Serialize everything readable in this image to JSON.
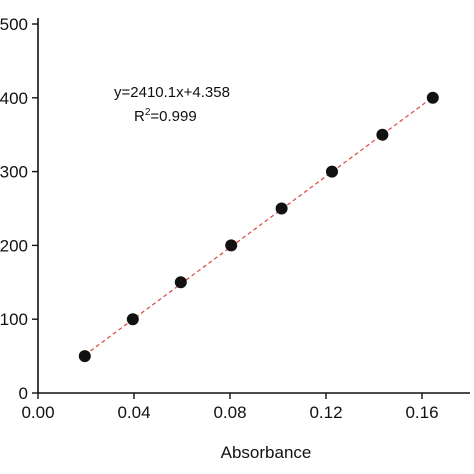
{
  "chart_data": {
    "type": "scatter",
    "xlabel": "Absorbance",
    "ylabel": "",
    "xlim": [
      0,
      0.18
    ],
    "ylim": [
      0,
      500
    ],
    "x_ticks": [
      "0.00",
      "0.04",
      "0.08",
      "0.12",
      "0.16"
    ],
    "x_tick_values": [
      0,
      0.04,
      0.08,
      0.12,
      0.16
    ],
    "y_ticks": [
      "0",
      "100",
      "200",
      "300",
      "400",
      "500"
    ],
    "y_tick_values": [
      0,
      100,
      200,
      300,
      400,
      500
    ],
    "series": [
      {
        "points": [
          {
            "x": 0.0195,
            "y": 50
          },
          {
            "x": 0.0395,
            "y": 100
          },
          {
            "x": 0.0595,
            "y": 150
          },
          {
            "x": 0.0805,
            "y": 200
          },
          {
            "x": 0.1015,
            "y": 250
          },
          {
            "x": 0.1225,
            "y": 300
          },
          {
            "x": 0.1435,
            "y": 350
          },
          {
            "x": 0.1645,
            "y": 400
          }
        ]
      }
    ],
    "trendline": {
      "slope": 2410.1,
      "intercept": 4.358,
      "style": "dashed",
      "x_range": [
        0.0195,
        0.1645
      ]
    },
    "annotation": {
      "equation": "y=2410.1x+4.358",
      "r2_label": "R",
      "r2_sup": "2",
      "r2_value": "=0.999"
    },
    "grid": false,
    "colors": {
      "points": "#111111",
      "trendline": "#d9534f",
      "axis": "#111111"
    }
  }
}
